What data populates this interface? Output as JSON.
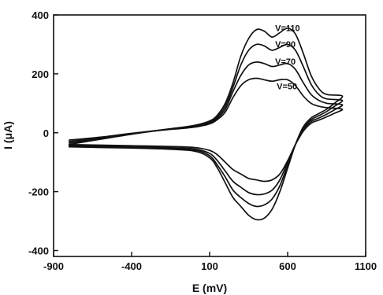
{
  "chart_data": {
    "type": "line",
    "title": "",
    "xlabel": "E (mV)",
    "ylabel": "I (μA)",
    "xlim": [
      -900,
      1100
    ],
    "ylim": [
      -420,
      400
    ],
    "xticks": [
      -900,
      -400,
      100,
      600,
      1100
    ],
    "yticks": [
      400,
      200,
      0,
      -200,
      -400
    ],
    "xtick_labels": [
      "-900",
      "-400",
      "100",
      "600",
      "1100"
    ],
    "ytick_labels": [
      "400",
      "200",
      "0",
      "-200",
      "-400"
    ],
    "grid": false,
    "annotations": [
      "V=110",
      "V=90",
      "V=70",
      "V=50"
    ],
    "series": [
      {
        "label": "V=110",
        "forward": {
          "x": [
            -800,
            -600,
            -400,
            -200,
            0,
            100,
            150,
            200,
            250,
            300,
            350,
            400,
            450,
            500,
            550,
            600,
            650,
            700,
            750,
            800,
            850,
            950
          ],
          "y": [
            -40,
            -22,
            -5,
            10,
            25,
            40,
            60,
            100,
            170,
            260,
            320,
            350,
            345,
            325,
            340,
            355,
            335,
            270,
            195,
            150,
            130,
            125
          ]
        },
        "reverse": {
          "x": [
            950,
            900,
            850,
            800,
            750,
            700,
            650,
            600,
            550,
            500,
            450,
            400,
            350,
            300,
            250,
            200,
            150,
            100,
            0,
            -200,
            -400,
            -600,
            -800
          ],
          "y": [
            125,
            100,
            80,
            65,
            50,
            20,
            -40,
            -120,
            -200,
            -260,
            -290,
            -295,
            -280,
            -250,
            -220,
            -170,
            -120,
            -85,
            -62,
            -55,
            -52,
            -50,
            -48
          ]
        }
      },
      {
        "label": "V=90",
        "forward": {
          "x": [
            -800,
            -600,
            -400,
            -200,
            0,
            100,
            150,
            200,
            250,
            300,
            350,
            400,
            450,
            500,
            550,
            600,
            650,
            700,
            750,
            800,
            850,
            950
          ],
          "y": [
            -35,
            -20,
            -4,
            10,
            23,
            37,
            55,
            90,
            155,
            230,
            280,
            300,
            295,
            280,
            290,
            300,
            280,
            225,
            165,
            130,
            115,
            110
          ]
        },
        "reverse": {
          "x": [
            950,
            900,
            850,
            800,
            750,
            700,
            650,
            600,
            550,
            500,
            450,
            400,
            350,
            300,
            250,
            200,
            150,
            100,
            0,
            -200,
            -400,
            -600,
            -800
          ],
          "y": [
            110,
            90,
            72,
            58,
            44,
            15,
            -40,
            -110,
            -180,
            -225,
            -245,
            -250,
            -240,
            -220,
            -195,
            -150,
            -110,
            -78,
            -58,
            -52,
            -49,
            -47,
            -45
          ]
        }
      },
      {
        "label": "V=70",
        "forward": {
          "x": [
            -800,
            -600,
            -400,
            -200,
            0,
            100,
            150,
            200,
            250,
            300,
            350,
            400,
            450,
            500,
            550,
            600,
            650,
            700,
            750,
            800,
            850,
            950
          ],
          "y": [
            -30,
            -18,
            -3,
            10,
            21,
            34,
            50,
            80,
            140,
            195,
            230,
            240,
            235,
            225,
            230,
            235,
            215,
            170,
            130,
            110,
            100,
            95
          ]
        },
        "reverse": {
          "x": [
            950,
            900,
            850,
            800,
            750,
            700,
            650,
            600,
            550,
            500,
            450,
            400,
            350,
            300,
            250,
            200,
            150,
            100,
            0,
            -200,
            -400,
            -600,
            -800
          ],
          "y": [
            95,
            78,
            63,
            50,
            38,
            10,
            -40,
            -100,
            -160,
            -195,
            -208,
            -210,
            -203,
            -185,
            -165,
            -130,
            -95,
            -70,
            -55,
            -50,
            -47,
            -45,
            -42
          ]
        }
      },
      {
        "label": "V=50",
        "forward": {
          "x": [
            -800,
            -600,
            -400,
            -200,
            0,
            100,
            150,
            200,
            250,
            300,
            350,
            400,
            450,
            500,
            550,
            600,
            650,
            700,
            750,
            800,
            850,
            950
          ],
          "y": [
            -25,
            -15,
            -2,
            9,
            19,
            30,
            45,
            70,
            120,
            160,
            180,
            185,
            180,
            175,
            180,
            180,
            160,
            125,
            100,
            90,
            85,
            80
          ]
        },
        "reverse": {
          "x": [
            950,
            900,
            850,
            800,
            750,
            700,
            650,
            600,
            550,
            500,
            450,
            400,
            350,
            300,
            250,
            200,
            150,
            100,
            0,
            -200,
            -400,
            -600,
            -800
          ],
          "y": [
            80,
            66,
            54,
            43,
            32,
            5,
            -40,
            -95,
            -140,
            -160,
            -165,
            -160,
            -155,
            -140,
            -125,
            -100,
            -75,
            -60,
            -50,
            -46,
            -44,
            -42,
            -40
          ]
        }
      }
    ]
  }
}
